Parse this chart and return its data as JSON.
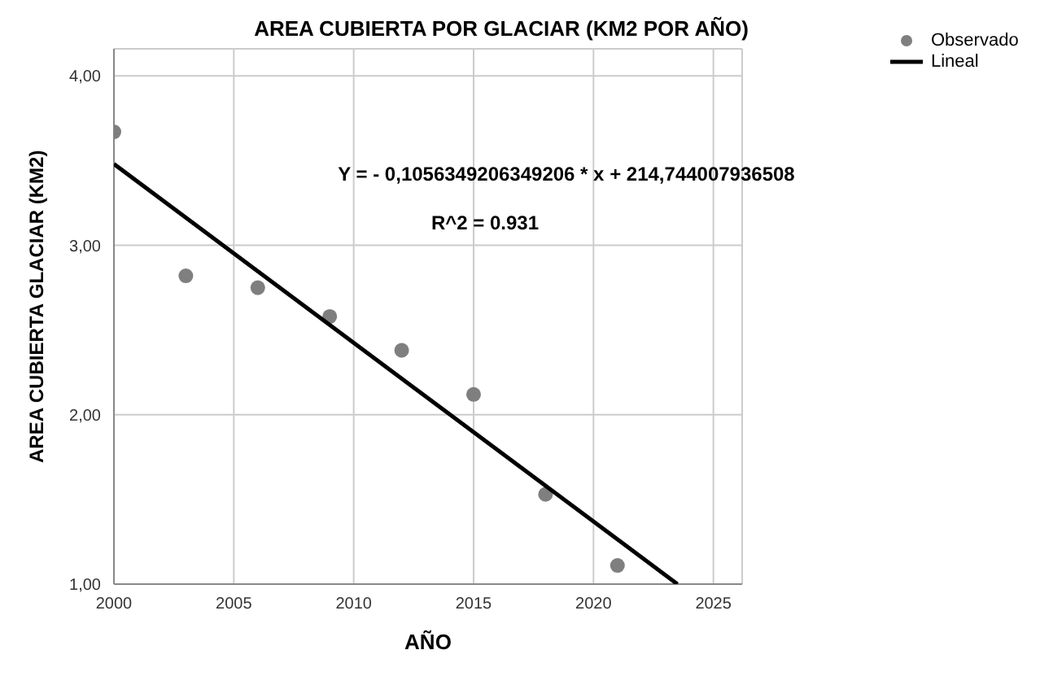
{
  "chart_data": {
    "type": "scatter",
    "title": "AREA CUBIERTA POR GLACIAR (KM2 POR AÑO)",
    "xlabel": "AÑO",
    "ylabel": "AREA CUBIERTA GLACIAR (KM2)",
    "x": [
      2000,
      2003,
      2006,
      2009,
      2012,
      2015,
      2018,
      2021
    ],
    "series": [
      {
        "name": "Observado",
        "marker": "circle",
        "color": "#7f7f7f",
        "values": [
          3.67,
          2.82,
          2.75,
          2.58,
          2.38,
          2.12,
          1.53,
          1.11
        ]
      },
      {
        "name": "Lineal",
        "type": "line",
        "color": "#000000",
        "x": [
          2000,
          2023.5
        ],
        "values": [
          3.48,
          1.0
        ]
      }
    ],
    "xlim": [
      2000,
      2026.2
    ],
    "xticks": [
      2000,
      2005,
      2010,
      2015,
      2020,
      2025
    ],
    "ylim": [
      1,
      4.16
    ],
    "yticks": [
      {
        "value": 1,
        "label": "1,00"
      },
      {
        "value": 2,
        "label": "2,00"
      },
      {
        "value": 3,
        "label": "3,00"
      },
      {
        "value": 4,
        "label": "4,00"
      }
    ],
    "grid": true,
    "legend": "top right",
    "annotations": [
      "Y = - 0,1056349206349206 * x + 214,744007936508",
      "R^2 = 0.931"
    ]
  }
}
